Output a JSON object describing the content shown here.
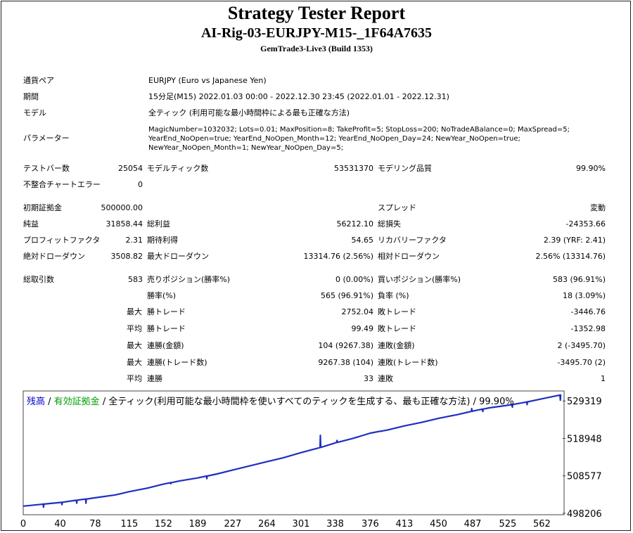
{
  "header": {
    "title": "Strategy Tester Report",
    "subtitle": "AI-Rig-03-EURJPY-M15-_1F64A7635",
    "server": "GemTrade3-Live3 (Build 1353)"
  },
  "settings": {
    "symbol_label": "通貨ペア",
    "symbol": "EURJPY (Euro vs Japanese Yen)",
    "period_label": "期間",
    "period": "15分足(M15) 2022.01.03 00:00 - 2022.12.30 23:45 (2022.01.01 - 2022.12.31)",
    "model_label": "モデル",
    "model": "全ティック (利用可能な最小時間枠による最も正確な方法)",
    "params_label": "パラメーター",
    "params": [
      "MagicNumber=1032032; Lots=0.01; MaxPosition=8; TakeProfit=5; StopLoss=200; NoTradeABalance=0; MaxSpread=5;",
      "YearEnd_NoOpen=true; YearEnd_NoOpen_Month=12; YearEnd_NoOpen_Day=24; NewYear_NoOpen=true;",
      "NewYear_NoOpen_Month=1; NewYear_NoOpen_Day=5;"
    ]
  },
  "stats": {
    "bars_label": "テストバー数",
    "bars": "25054",
    "ticks_label": "モデルティック数",
    "ticks": "53531370",
    "quality_label": "モデリング品質",
    "quality": "99.90%",
    "mismatch_label": "不整合チャートエラー",
    "mismatch": "0",
    "deposit_label": "初期証拠金",
    "deposit": "500000.00",
    "spread_label": "スプレッド",
    "spread": "変動",
    "net_label": "純益",
    "net": "31858.44",
    "gross_profit_label": "総利益",
    "gross_profit": "56212.10",
    "gross_loss_label": "総損失",
    "gross_loss": "-24353.66",
    "pf_label": "プロフィットファクタ",
    "pf": "2.31",
    "expected_label": "期待利得",
    "expected": "54.65",
    "recovery_label": "リカバリーファクタ",
    "recovery": "2.39 (YRF: 2.41)",
    "abs_dd_label": "絶対ドローダウン",
    "abs_dd": "3508.82",
    "max_dd_label": "最大ドローダウン",
    "max_dd": "13314.76 (2.56%)",
    "rel_dd_label": "相対ドローダウン",
    "rel_dd": "2.56% (13314.76)",
    "trades_label": "総取引数",
    "trades": "583",
    "short_label": "売りポジション(勝率%)",
    "short": "0 (0.00%)",
    "long_label": "買いポジション(勝率%)",
    "long": "583 (96.91%)",
    "win_label": "勝率(%)",
    "win": "565 (96.91%)",
    "loss_label": "負率 (%)",
    "loss": "18 (3.09%)",
    "max_word": "最大",
    "avg_word": "平均",
    "lwin_label": "勝トレード",
    "lwin": "2752.04",
    "lloss_label": "敗トレード",
    "lloss": "-3446.76",
    "awin_label": "勝トレード",
    "awin": "99.49",
    "aloss_label": "敗トレード",
    "aloss": "-1352.98",
    "mcw_label": "連勝(金額)",
    "mcw": "104 (9267.38)",
    "mcl_label": "連敗(金額)",
    "mcl": "2 (-3495.70)",
    "mcp_label": "連勝(トレード数)",
    "mcp": "9267.38 (104)",
    "mcpl_label": "連敗(トレード数)",
    "mcpl": "-3495.70 (2)",
    "acw_label": "連勝",
    "acw": "33",
    "acl_label": "連敗",
    "acl": "1"
  },
  "chart_legend": {
    "balance": "残高",
    "sep1": " / ",
    "equity": "有効証拠金",
    "rest": " / 全ティック(利用可能な最小時間枠を使いすべてのティックを生成する、最も正確な方法) / 99.90%"
  },
  "chart_data": {
    "type": "line",
    "x_ticks": [
      "0",
      "40",
      "78",
      "115",
      "152",
      "189",
      "227",
      "264",
      "301",
      "338",
      "376",
      "413",
      "450",
      "487",
      "525",
      "562"
    ],
    "y_ticks": [
      "529319",
      "518948",
      "508577",
      "498206"
    ],
    "ylim": [
      498206,
      531300
    ],
    "xlim": [
      0,
      583
    ],
    "series": [
      {
        "color": "#1f2fbf",
        "x": [
          0,
          20,
          40,
          60,
          78,
          100,
          115,
          135,
          152,
          170,
          189,
          210,
          227,
          245,
          264,
          282,
          301,
          320,
          338,
          358,
          376,
          395,
          413,
          432,
          450,
          470,
          487,
          505,
          525,
          545,
          562,
          583
        ],
        "y": [
          500200,
          500700,
          501200,
          501900,
          502500,
          503300,
          504200,
          505200,
          506300,
          507200,
          508000,
          509100,
          510200,
          511300,
          512500,
          513600,
          515000,
          516300,
          517700,
          519000,
          520400,
          521300,
          522400,
          523400,
          524500,
          525500,
          526500,
          527400,
          528100,
          529000,
          529900,
          531000
        ]
      }
    ],
    "dips": [
      [
        22,
        499900
      ],
      [
        42,
        500600
      ],
      [
        58,
        501000
      ],
      [
        68,
        501000
      ],
      [
        160,
        506400
      ],
      [
        199,
        507800
      ],
      [
        322,
        519800
      ],
      [
        340,
        518400
      ],
      [
        388,
        520900
      ],
      [
        486,
        527200
      ],
      [
        498,
        526400
      ],
      [
        530,
        527600
      ],
      [
        546,
        528300
      ],
      [
        582,
        529500
      ]
    ]
  }
}
